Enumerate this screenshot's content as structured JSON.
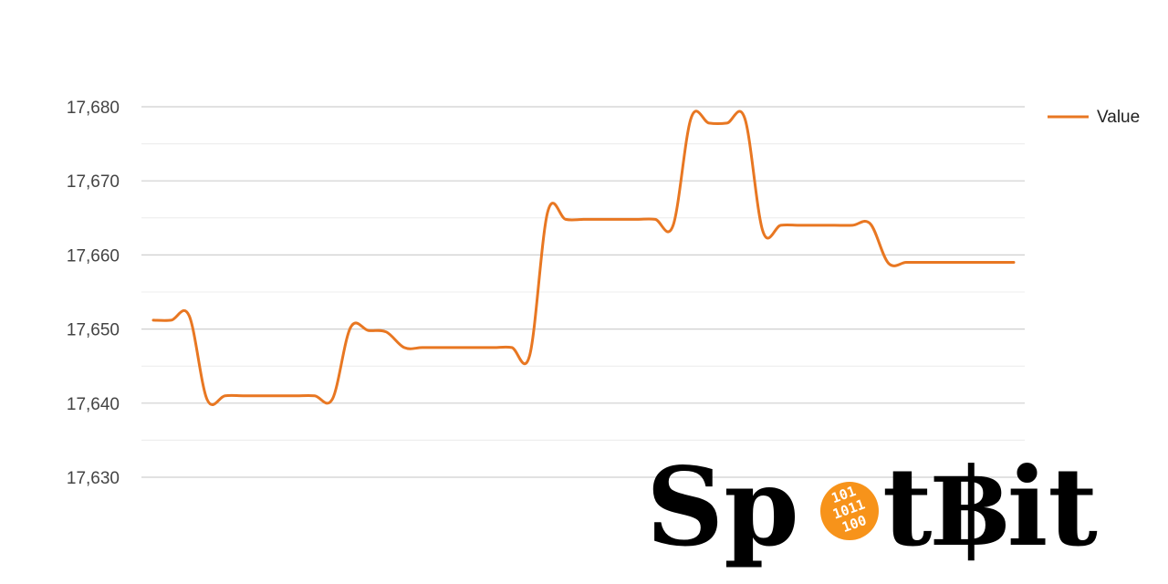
{
  "chart_data": {
    "type": "line",
    "title": "",
    "xlabel": "",
    "ylabel": "",
    "ylim": [
      17630,
      17680
    ],
    "yticks": [
      17630,
      17640,
      17650,
      17660,
      17670,
      17680
    ],
    "ytick_labels": [
      "17,630",
      "17,640",
      "17,650",
      "17,660",
      "17,670",
      "17,680"
    ],
    "grid": true,
    "legend_position": "top-right",
    "series": [
      {
        "name": "Value",
        "color": "#e87722",
        "x": [
          0,
          1,
          2,
          3,
          4,
          5,
          6,
          7,
          8,
          9,
          10,
          11,
          12,
          13,
          14,
          15,
          16,
          17,
          18,
          19,
          20,
          21,
          22,
          23,
          24,
          25,
          26,
          27,
          28,
          29,
          30,
          31,
          32,
          33,
          34,
          35,
          36,
          37,
          38,
          39,
          40,
          41,
          42,
          43,
          44,
          45,
          46,
          47,
          48
        ],
        "values": [
          17651.2,
          17651.2,
          17651.8,
          17640.5,
          17641,
          17641,
          17641,
          17641,
          17641,
          17641,
          17640.6,
          17650.2,
          17649.8,
          17649.6,
          17647.5,
          17647.5,
          17647.5,
          17647.5,
          17647.5,
          17647.5,
          17647.5,
          17646.5,
          17665.8,
          17664.8,
          17664.8,
          17664.8,
          17664.8,
          17664.8,
          17664.8,
          17664,
          17678.5,
          17677.8,
          17677.8,
          17678.4,
          17663.2,
          17664,
          17664,
          17664,
          17664,
          17664,
          17664.2,
          17658.9,
          17659,
          17659,
          17659,
          17659,
          17659,
          17659,
          17659
        ]
      }
    ]
  },
  "legend": {
    "items": [
      {
        "label": "Value",
        "color": "#e87722"
      }
    ]
  },
  "logo": {
    "text": "SpotBit",
    "badge_lines": [
      "101",
      "1011",
      "100"
    ],
    "badge_color": "#f7931a"
  }
}
